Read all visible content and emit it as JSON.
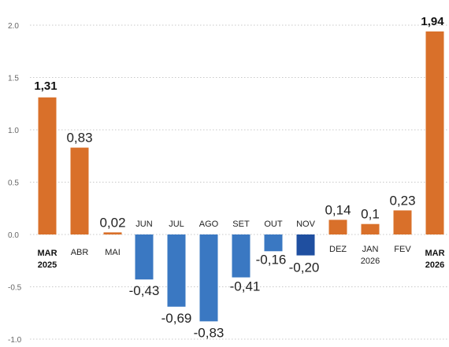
{
  "chart_data": {
    "type": "bar",
    "title": "",
    "xlabel": "",
    "ylabel": "",
    "ylim": [
      -1.0,
      2.0
    ],
    "yticks": [
      "-1.0",
      "-0.5",
      "0.0",
      "0.5",
      "1.0",
      "1.5",
      "2.0"
    ],
    "grid": true,
    "categories": [
      [
        "MAR",
        "2025"
      ],
      [
        "ABR"
      ],
      [
        "MAI"
      ],
      [
        "JUN"
      ],
      [
        "JUL"
      ],
      [
        "AGO"
      ],
      [
        "SET"
      ],
      [
        "OUT"
      ],
      [
        "NOV"
      ],
      [
        "DEZ"
      ],
      [
        "JAN",
        "2026"
      ],
      [
        "FEV"
      ],
      [
        "MAR",
        "2026"
      ]
    ],
    "values": [
      1.31,
      0.83,
      0.02,
      -0.43,
      -0.69,
      -0.83,
      -0.41,
      -0.16,
      -0.2,
      0.14,
      0.1,
      0.23,
      1.94
    ],
    "value_labels": [
      "1,31",
      "0,83",
      "0,02",
      "-0,43",
      "-0,69",
      "-0,83",
      "-0,41",
      "-0,16",
      "-0,20",
      "0,14",
      "0,1",
      "0,23",
      "1,94"
    ],
    "highlighted": [
      0,
      12
    ],
    "colors": {
      "positive": "#d9702a",
      "negative": "#3a78c2",
      "negative_dark": "#1f4fa0",
      "grid": "#c8c8c8"
    }
  }
}
